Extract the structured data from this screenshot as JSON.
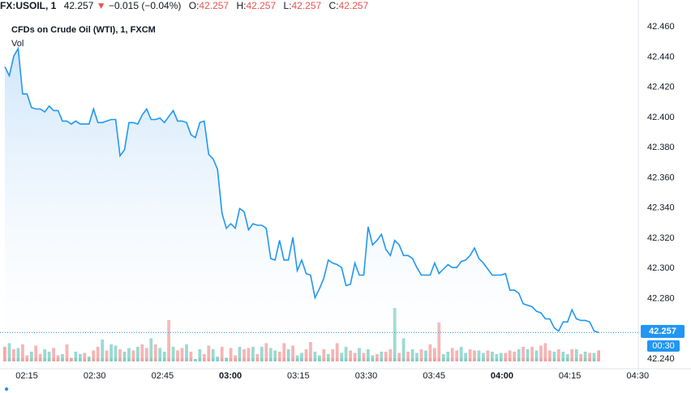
{
  "header": {
    "symbol": "FX:USOIL, 1",
    "last_price": "42.257",
    "down_arrow": "▼",
    "change": "−0.015 (−0.04%)",
    "o_label": "O:",
    "o_value": "42.257",
    "h_label": "H:",
    "h_value": "42.257",
    "l_label": "L:",
    "l_value": "42.257",
    "c_label": "C:",
    "c_value": "42.257"
  },
  "legend": {
    "title": "CFDs on Crude Oil (WTI), 1, FXCM",
    "volume_label": "Vol"
  },
  "price_badge": "42.257",
  "countdown_badge": "00:30",
  "colors": {
    "line": "#2196f3",
    "area_top": "#cfe6fb",
    "area_bottom": "#ffffff",
    "vol_up": "#7fcfc4",
    "vol_down": "#f4a0a0",
    "badge": "#2196f3"
  },
  "chart_data": {
    "type": "area",
    "x_label_ticks": [
      "02:15",
      "02:30",
      "02:45",
      "03:00",
      "03:15",
      "03:30",
      "03:45",
      "04:00",
      "04:15",
      "04:30"
    ],
    "y_ticks": [
      "42.460",
      "42.440",
      "42.420",
      "42.400",
      "42.380",
      "42.360",
      "42.340",
      "42.320",
      "42.300",
      "42.280",
      "42.257",
      "42.240"
    ],
    "ylim": [
      42.24,
      42.46
    ],
    "series": [
      {
        "values": [
          42.433,
          42.427,
          42.44,
          42.445,
          42.415,
          42.415,
          42.406,
          42.405,
          42.405,
          42.403,
          42.407,
          42.404,
          42.404,
          42.397,
          42.397,
          42.395,
          42.397,
          42.395,
          42.395,
          42.395,
          42.405,
          42.396,
          42.396,
          42.397,
          42.398,
          42.398,
          42.374,
          42.378,
          42.396,
          42.396,
          42.395,
          42.401,
          42.405,
          42.398,
          42.398,
          42.399,
          42.396,
          42.4,
          42.404,
          42.397,
          42.397,
          42.396,
          42.388,
          42.386,
          42.396,
          42.397,
          42.375,
          42.372,
          42.365,
          42.336,
          42.326,
          42.329,
          42.326,
          42.339,
          42.337,
          42.325,
          42.329,
          42.328,
          42.328,
          42.326,
          42.306,
          42.305,
          42.318,
          42.305,
          42.305,
          42.32,
          42.298,
          42.305,
          42.296,
          42.295,
          42.28,
          42.286,
          42.293,
          42.305,
          42.303,
          42.302,
          42.3,
          42.288,
          42.289,
          42.303,
          42.295,
          42.295,
          42.327,
          42.315,
          42.318,
          42.322,
          42.312,
          42.308,
          42.318,
          42.315,
          42.308,
          42.308,
          42.306,
          42.3,
          42.295,
          42.295,
          42.295,
          42.303,
          42.296,
          42.299,
          42.302,
          42.3,
          42.3,
          42.304,
          42.305,
          42.308,
          42.313,
          42.306,
          42.303,
          42.299,
          42.295,
          42.295,
          42.295,
          42.296,
          42.285,
          42.285,
          42.283,
          42.276,
          42.275,
          42.274,
          42.271,
          42.27,
          42.266,
          42.266,
          42.26,
          42.258,
          42.264,
          42.264,
          42.272,
          42.266,
          42.265,
          42.265,
          42.264,
          42.258,
          42.257
        ],
        "volumes_relative": [
          0.12,
          0.15,
          0.1,
          0.11,
          0.14,
          0.05,
          0.08,
          0.13,
          0.06,
          0.1,
          0.08,
          0.11,
          0.05,
          0.06,
          0.14,
          0.03,
          0.08,
          0.06,
          0.07,
          0.04,
          0.09,
          0.12,
          0.18,
          0.09,
          0.14,
          0.13,
          0.1,
          0.08,
          0.11,
          0.09,
          0.12,
          0.14,
          0.11,
          0.19,
          0.14,
          0.11,
          0.08,
          0.11,
          0.12,
          0.09,
          0.11,
          0.14,
          0.08,
          0.02,
          0.1,
          0.06,
          0.13,
          0.1,
          0.04,
          0.12,
          0.03,
          0.11,
          0.05,
          0.12,
          0.1,
          0.11,
          0.12,
          0.06,
          0.12,
          0.15,
          0.11,
          0.09,
          0.08,
          0.15,
          0.1,
          0.13,
          0.05,
          0.07,
          0.1,
          0.16,
          0.08,
          0.05,
          0.1,
          0.06,
          0.1,
          0.15,
          0.07,
          0.12,
          0.09,
          0.07,
          0.11,
          0.07,
          0.1,
          0.05,
          0.06,
          0.08,
          0.08,
          0.1,
          0.1,
          0.07,
          0.12,
          0.08,
          0.1,
          0.07,
          0.1,
          0.09,
          0.06,
          0.11,
          0.04,
          0.06,
          0.08,
          0.11,
          0.09,
          0.12,
          0.07,
          0.1,
          0.09,
          0.09,
          0.07,
          0.09,
          0.08,
          0.06,
          0.07,
          0.07,
          0.09,
          0.08,
          0.1,
          0.12,
          0.1,
          0.12,
          0.09,
          0.13,
          0.15,
          0.09,
          0.08,
          0.1,
          0.08,
          0.06,
          0.1,
          0.1,
          0.06,
          0.08,
          0.07,
          0.07,
          0.09
        ],
        "volume_up": [
          false,
          true,
          false,
          true,
          false,
          false,
          true,
          false,
          false,
          true,
          true,
          false,
          false,
          true,
          false,
          false,
          true,
          true,
          false,
          true,
          false,
          false,
          true,
          false,
          true,
          true,
          false,
          true,
          true,
          false,
          true,
          false,
          false,
          true,
          false,
          true,
          true,
          false,
          true,
          false,
          false,
          true,
          false,
          true,
          true,
          false,
          false,
          true,
          true,
          false,
          true,
          false,
          false,
          true,
          false,
          false,
          true,
          false,
          true,
          false,
          true,
          true,
          false,
          false,
          true,
          false,
          true,
          true,
          false,
          false,
          true,
          true,
          false,
          true,
          false,
          false,
          true,
          true,
          false,
          false,
          true,
          false,
          true,
          true,
          false,
          true,
          false,
          false,
          true,
          false,
          true,
          false,
          true,
          true,
          false,
          true,
          false,
          false,
          false,
          true,
          true,
          false,
          false,
          true,
          true,
          false,
          false,
          true,
          true,
          false,
          true,
          true,
          true,
          false,
          false,
          false,
          true,
          false,
          true,
          false,
          true,
          false,
          false,
          false,
          true,
          false,
          true,
          true,
          false,
          true,
          false,
          true,
          false,
          true,
          false
        ],
        "volume_spikes": {
          "37": 0.34,
          "88": 0.44,
          "90": 0.19,
          "96": 0.14,
          "98": 0.32
        }
      }
    ]
  }
}
